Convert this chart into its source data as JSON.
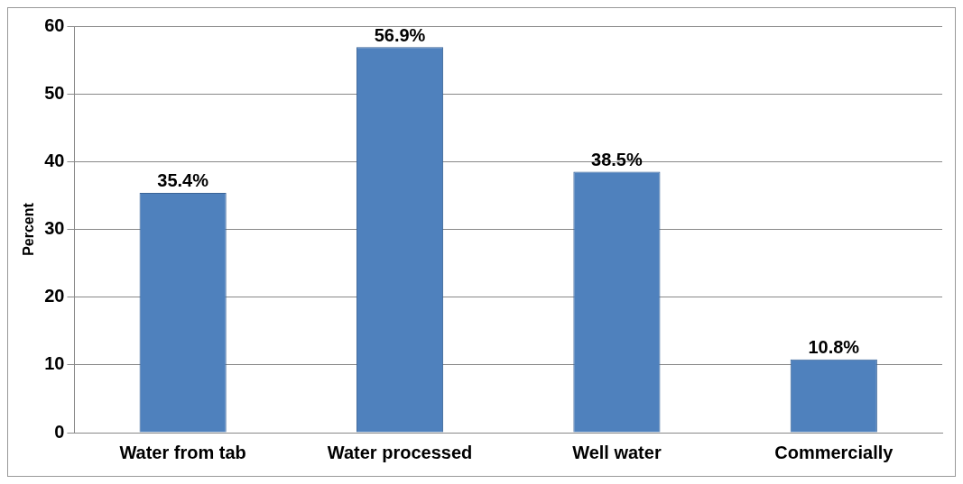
{
  "chart_data": {
    "type": "bar",
    "ylabel": "Percent",
    "categories": [
      "Water from tab",
      "Water processed",
      "Well water",
      "Commercially"
    ],
    "values": [
      35.4,
      56.9,
      38.5,
      10.8
    ],
    "value_labels": [
      "35.4%",
      "56.9%",
      "38.5%",
      "10.8%"
    ],
    "color": "#4f81bd",
    "ylim": [
      0,
      60
    ],
    "yticks": [
      0,
      10,
      20,
      30,
      40,
      50,
      60
    ],
    "grid": "y",
    "legend": false
  }
}
